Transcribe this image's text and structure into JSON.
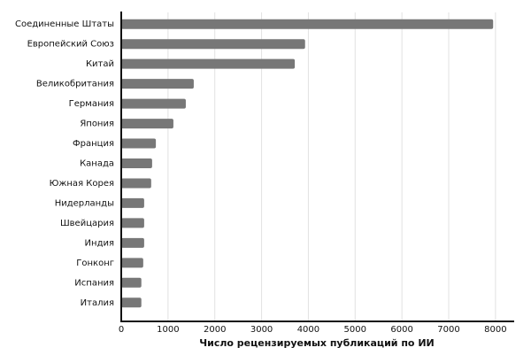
{
  "chart_data": {
    "type": "barh",
    "x_label": "Число рецензируемых публикаций по ИИ",
    "categories": [
      "Соединенные Штаты",
      "Европейский Союз",
      "Китай",
      "Великобритания",
      "Германия",
      "Япония",
      "Франция",
      "Канада",
      "Южная Корея",
      "Нидерланды",
      "Швейцария",
      "Индия",
      "Гонконг",
      "Испания",
      "Италия"
    ],
    "values": [
      7950,
      3930,
      3710,
      1550,
      1380,
      1115,
      740,
      660,
      640,
      490,
      490,
      490,
      470,
      430,
      430
    ],
    "color": "#777777",
    "xlim": [
      0,
      8400
    ],
    "xticks": [
      0,
      1000,
      2000,
      3000,
      4000,
      5000,
      6000,
      7000,
      8000
    ],
    "grid": true
  }
}
